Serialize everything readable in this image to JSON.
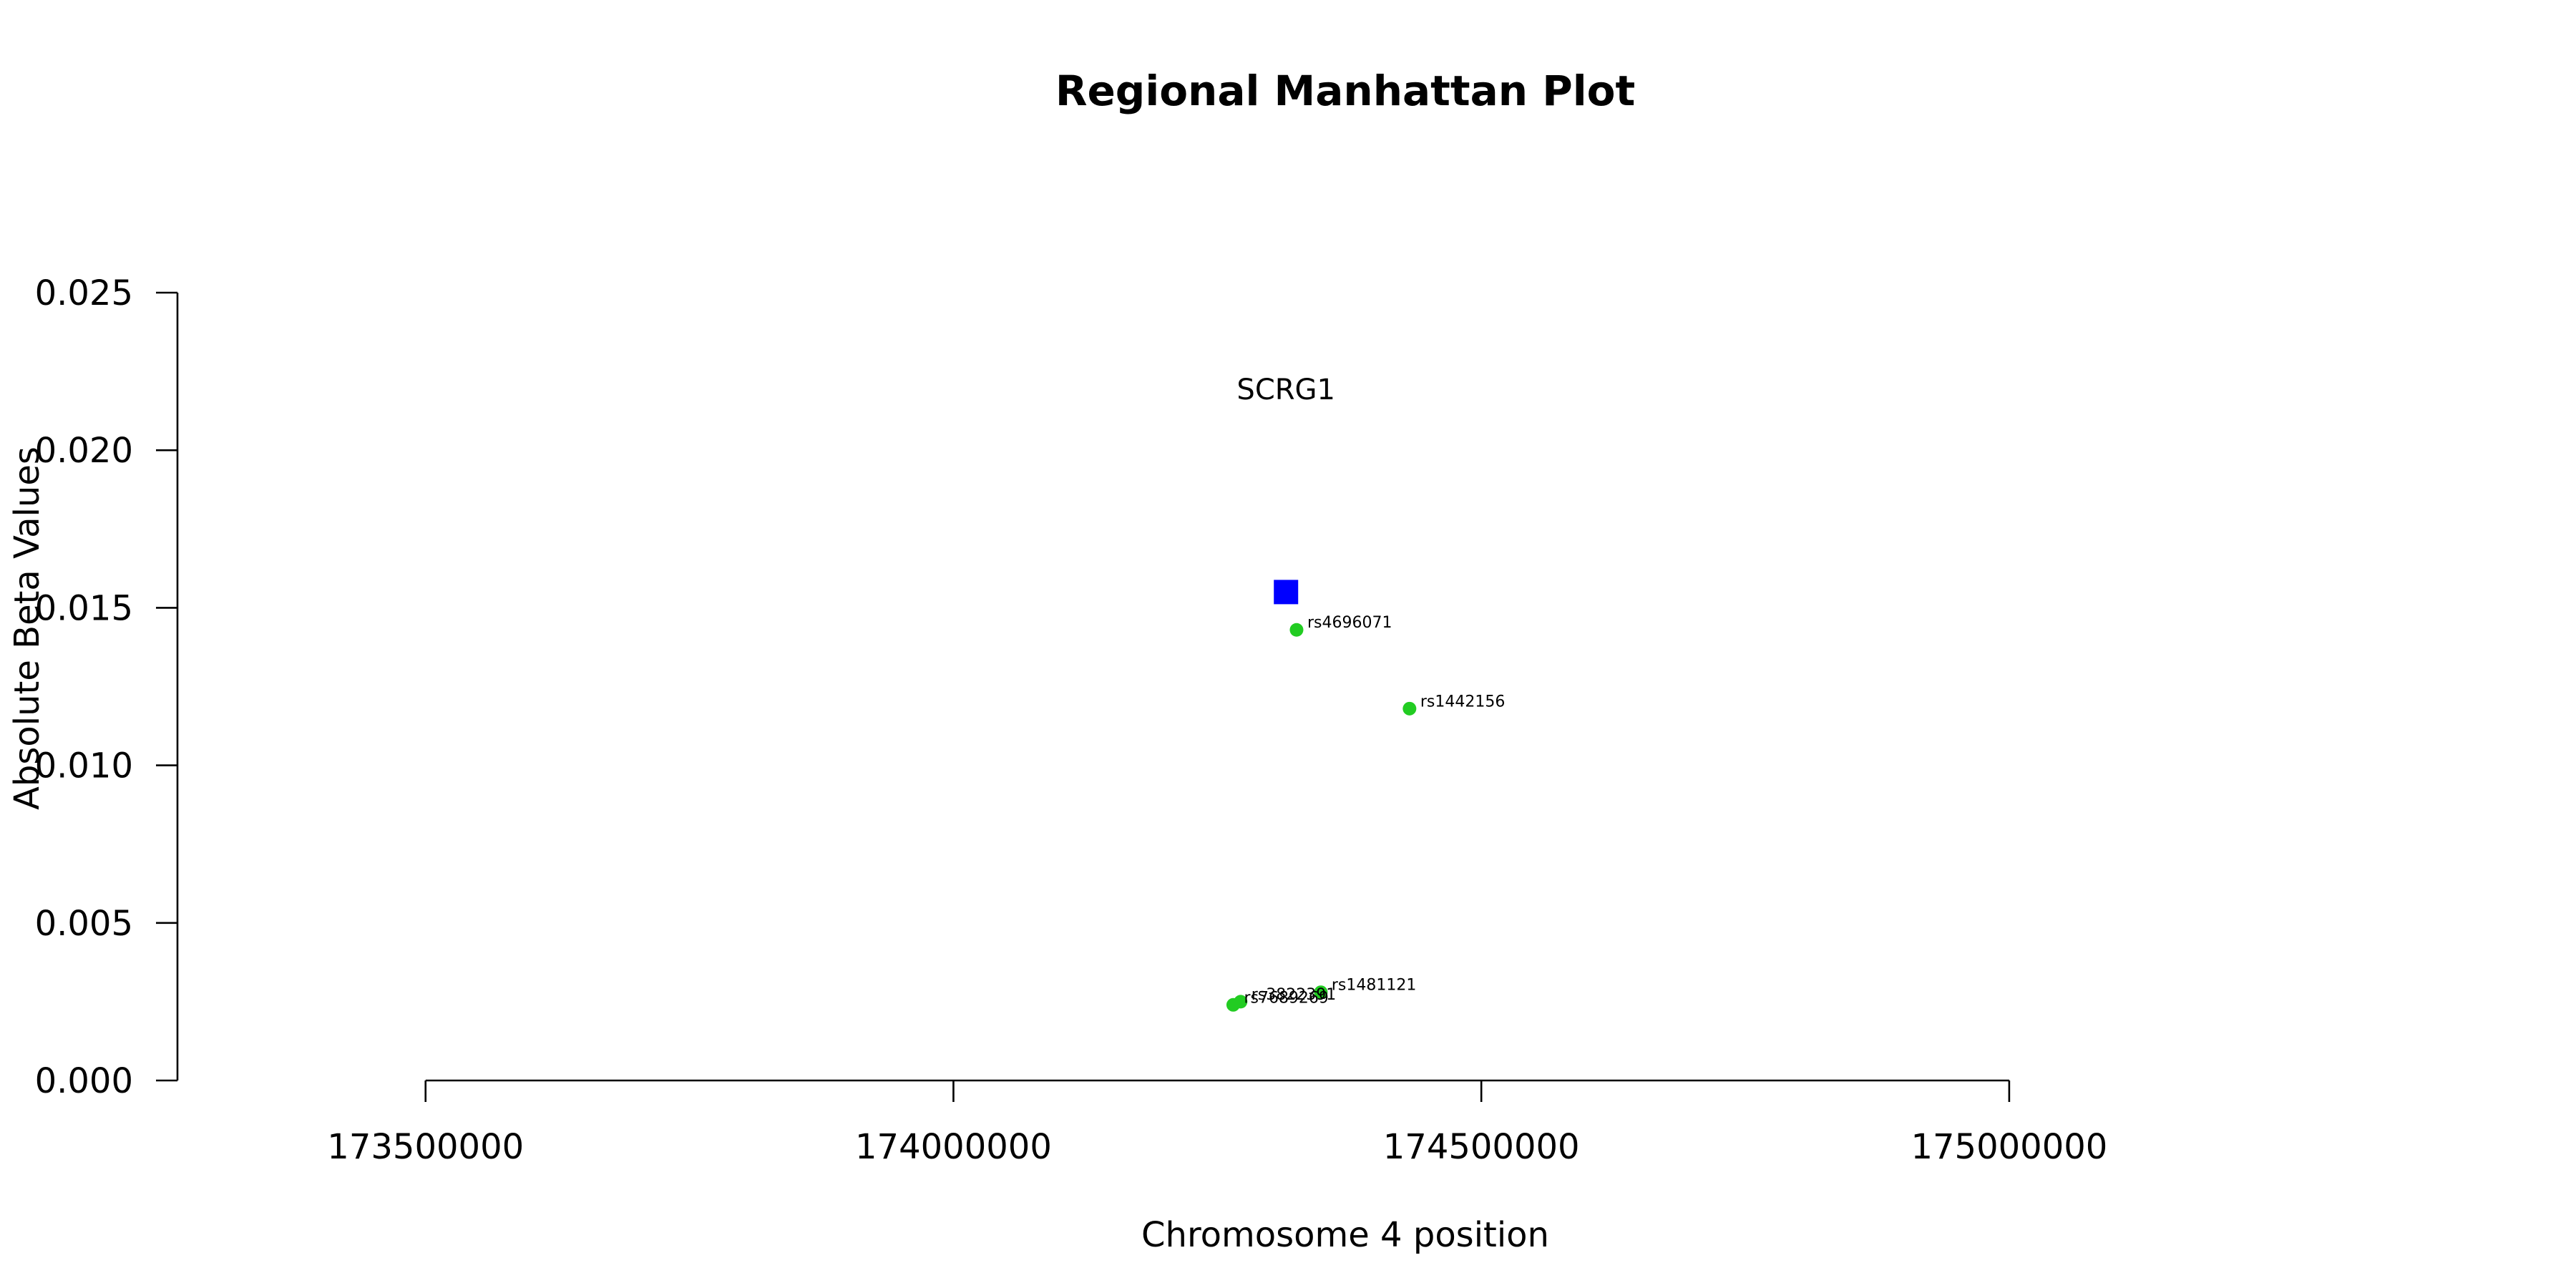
{
  "chart_data": {
    "type": "scatter",
    "title": "Regional Manhattan Plot",
    "xlabel": "Chromosome 4 position",
    "ylabel": "Absolute Beta Values",
    "xlim": [
      173265000,
      175545000
    ],
    "ylim": [
      0,
      0.025
    ],
    "x_ticks": [
      173500000,
      174000000,
      174500000,
      175000000
    ],
    "x_tick_labels": [
      "173500000",
      "174000000",
      "174500000",
      "175000000"
    ],
    "y_ticks": [
      0,
      0.005,
      0.01,
      0.015,
      0.02,
      0.025
    ],
    "y_tick_labels": [
      "0.000",
      "0.005",
      "0.010",
      "0.015",
      "0.020",
      "0.025"
    ],
    "grid": false,
    "gene": {
      "name": "SCRG1",
      "x": 174315000,
      "y": 0.0155,
      "color": "#0000ff",
      "marker": "square"
    },
    "snp_color": "#22cc22",
    "snps": [
      {
        "id": "rs4696071",
        "x": 174325000,
        "y": 0.0143
      },
      {
        "id": "rs1442156",
        "x": 174432000,
        "y": 0.0118
      },
      {
        "id": "rs1481121",
        "x": 174348000,
        "y": 0.0028
      },
      {
        "id": "rs3822391",
        "x": 174272000,
        "y": 0.0025
      },
      {
        "id": "rs7689269",
        "x": 174265000,
        "y": 0.0024
      }
    ]
  }
}
